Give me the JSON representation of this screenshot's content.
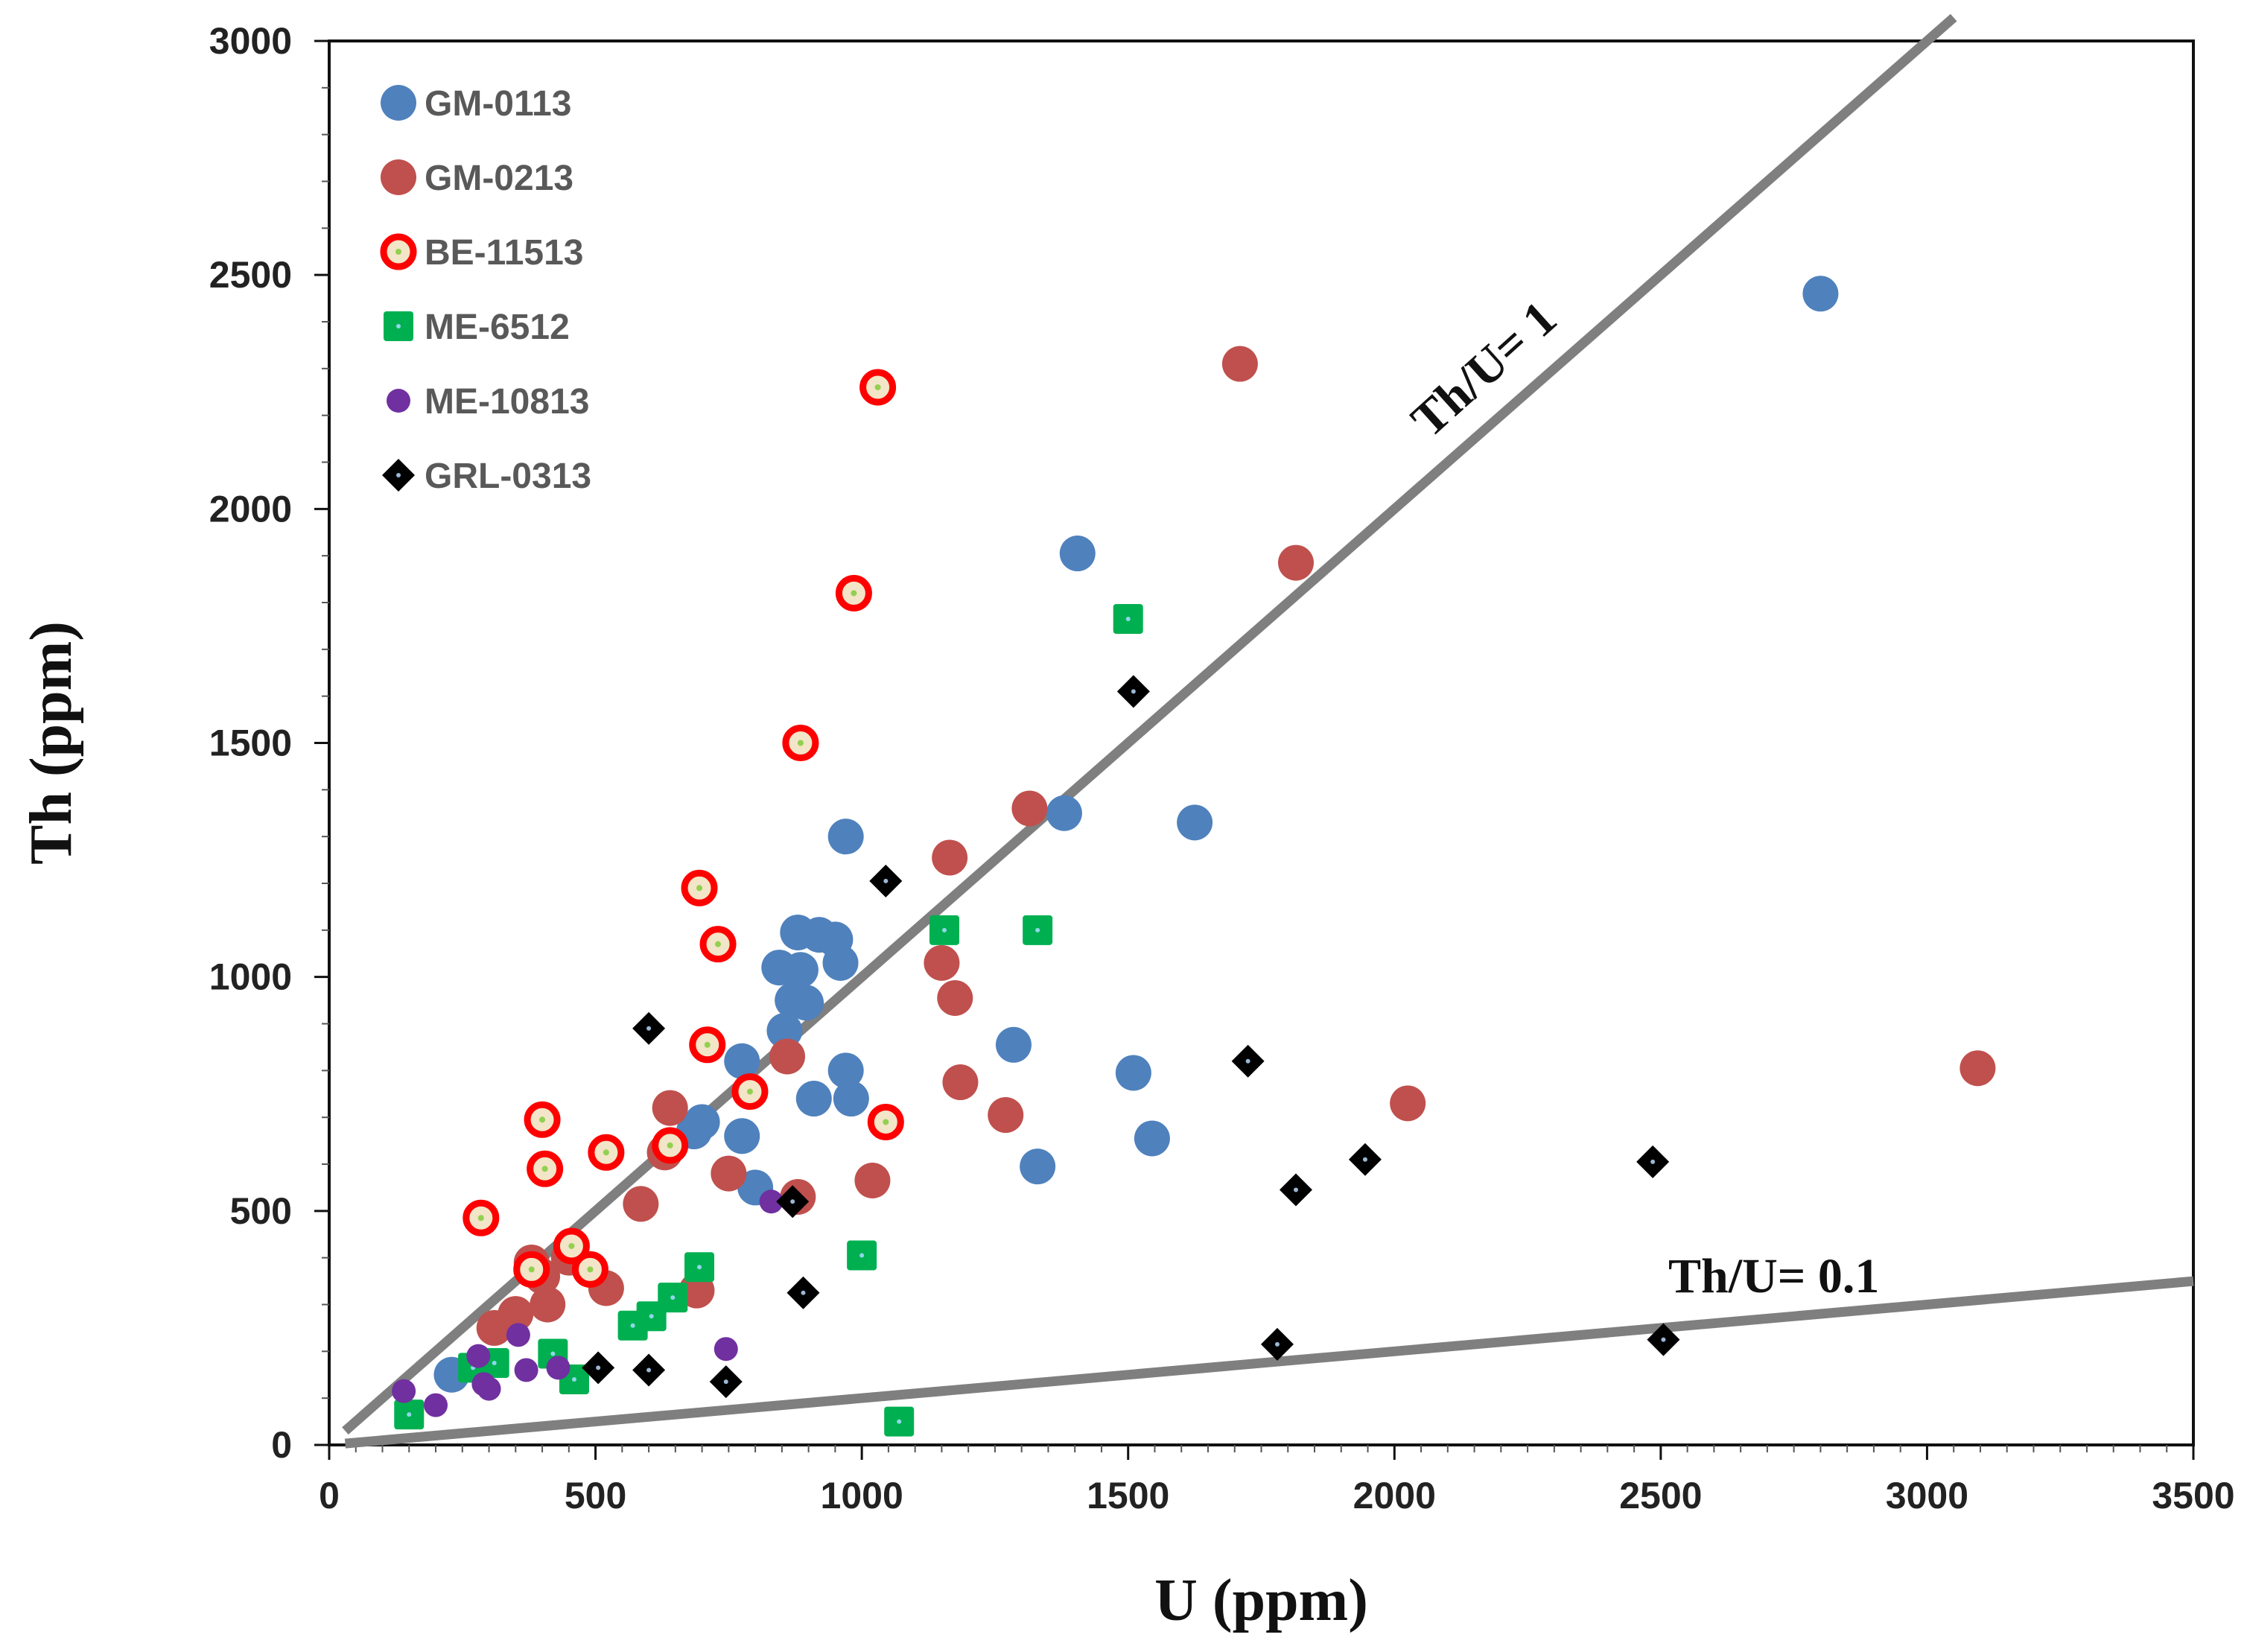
{
  "chart_data": {
    "type": "scatter",
    "title": "",
    "xlabel": "U (ppm)",
    "ylabel": "Th (ppm)",
    "xlim": [
      0,
      3500
    ],
    "ylim": [
      0,
      3000
    ],
    "xticks": [
      0,
      500,
      1000,
      1500,
      2000,
      2500,
      3000,
      3500
    ],
    "yticks": [
      0,
      500,
      1000,
      1500,
      2000,
      2500,
      3000
    ],
    "grid": false,
    "legend_position": "top-left",
    "reference_lines": [
      {
        "label": "Th/U= 1",
        "ratio": 1,
        "x_range": [
          30,
          3050
        ]
      },
      {
        "label": "Th/U= 0.1",
        "ratio": 0.1,
        "x_range": [
          30,
          3500
        ]
      }
    ],
    "series": [
      {
        "name": "GM-0113",
        "marker": "circle",
        "color": "#4f81bd",
        "points": [
          [
            2800,
            2460
          ],
          [
            1405,
            1905
          ],
          [
            970,
            1300
          ],
          [
            1380,
            1350
          ],
          [
            1625,
            1330
          ],
          [
            880,
            1095
          ],
          [
            920,
            1090
          ],
          [
            950,
            1080
          ],
          [
            960,
            1030
          ],
          [
            845,
            1020
          ],
          [
            885,
            1015
          ],
          [
            870,
            950
          ],
          [
            895,
            945
          ],
          [
            855,
            885
          ],
          [
            1285,
            855
          ],
          [
            775,
            820
          ],
          [
            970,
            800
          ],
          [
            1510,
            795
          ],
          [
            910,
            740
          ],
          [
            980,
            740
          ],
          [
            700,
            690
          ],
          [
            685,
            670
          ],
          [
            775,
            660
          ],
          [
            1545,
            655
          ],
          [
            1330,
            595
          ],
          [
            800,
            550
          ],
          [
            230,
            150
          ]
        ]
      },
      {
        "name": "GM-0213",
        "marker": "circle",
        "color": "#c0504d",
        "points": [
          [
            1710,
            2310
          ],
          [
            1815,
            1885
          ],
          [
            1315,
            1360
          ],
          [
            1165,
            1255
          ],
          [
            1150,
            1030
          ],
          [
            1175,
            955
          ],
          [
            1185,
            775
          ],
          [
            1270,
            705
          ],
          [
            2025,
            730
          ],
          [
            3095,
            805
          ],
          [
            860,
            830
          ],
          [
            640,
            720
          ],
          [
            750,
            580
          ],
          [
            1020,
            565
          ],
          [
            880,
            530
          ],
          [
            585,
            515
          ],
          [
            630,
            625
          ],
          [
            520,
            335
          ],
          [
            690,
            330
          ],
          [
            450,
            400
          ],
          [
            410,
            300
          ],
          [
            380,
            390
          ],
          [
            400,
            360
          ],
          [
            350,
            280
          ],
          [
            310,
            250
          ]
        ]
      },
      {
        "name": "BE-11513",
        "marker": "ring",
        "color": "#ff0000",
        "points": [
          [
            1030,
            2260
          ],
          [
            985,
            1820
          ],
          [
            885,
            1500
          ],
          [
            695,
            1190
          ],
          [
            730,
            1070
          ],
          [
            710,
            855
          ],
          [
            790,
            755
          ],
          [
            400,
            695
          ],
          [
            520,
            625
          ],
          [
            1045,
            690
          ],
          [
            640,
            640
          ],
          [
            405,
            590
          ],
          [
            285,
            485
          ],
          [
            455,
            425
          ],
          [
            490,
            375
          ],
          [
            380,
            375
          ]
        ]
      },
      {
        "name": "ME-6512",
        "marker": "square",
        "color": "#00b050",
        "points": [
          [
            1500,
            1765
          ],
          [
            1155,
            1100
          ],
          [
            1330,
            1100
          ],
          [
            695,
            380
          ],
          [
            1000,
            405
          ],
          [
            645,
            315
          ],
          [
            605,
            275
          ],
          [
            570,
            255
          ],
          [
            420,
            195
          ],
          [
            460,
            140
          ],
          [
            1070,
            50
          ],
          [
            150,
            65
          ],
          [
            270,
            165
          ],
          [
            310,
            175
          ]
        ]
      },
      {
        "name": "ME-10813",
        "marker": "small-circle",
        "color": "#7030a0",
        "points": [
          [
            745,
            205
          ],
          [
            355,
            235
          ],
          [
            280,
            190
          ],
          [
            430,
            165
          ],
          [
            370,
            160
          ],
          [
            140,
            115
          ],
          [
            200,
            85
          ],
          [
            290,
            130
          ],
          [
            300,
            120
          ],
          [
            830,
            520
          ]
        ]
      },
      {
        "name": "GRL-0313",
        "marker": "diamond",
        "color": "#000000",
        "points": [
          [
            1510,
            1610
          ],
          [
            1045,
            1205
          ],
          [
            600,
            890
          ],
          [
            1725,
            820
          ],
          [
            1945,
            610
          ],
          [
            2485,
            605
          ],
          [
            870,
            520
          ],
          [
            1815,
            545
          ],
          [
            890,
            325
          ],
          [
            505,
            165
          ],
          [
            600,
            160
          ],
          [
            745,
            135
          ],
          [
            1780,
            215
          ],
          [
            2505,
            225
          ]
        ]
      }
    ]
  }
}
